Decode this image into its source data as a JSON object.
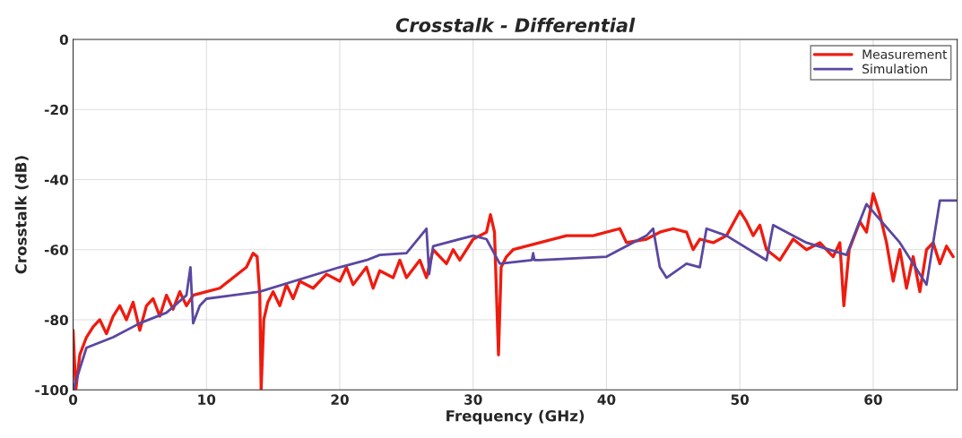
{
  "chart_data": {
    "type": "line",
    "title": "Crosstalk - Differential",
    "xlabel": "Frequency (GHz)",
    "ylabel": "Crosstalk (dB)",
    "xlim": [
      0,
      66.3
    ],
    "xticks": [
      0,
      10,
      20,
      30,
      40,
      50,
      60
    ],
    "ylim": [
      -100,
      0
    ],
    "yticks": [
      -100,
      -80,
      -60,
      -40,
      -20,
      0
    ],
    "grid": true,
    "legend": "top right",
    "line_style": "solid",
    "series": [
      {
        "name": "Measurement",
        "color": "#ee1c10",
        "x": [
          0,
          0.2,
          0.5,
          1,
          1.5,
          2,
          2.5,
          3,
          3.5,
          4,
          4.5,
          5,
          5.5,
          6,
          6.5,
          7,
          7.5,
          8,
          8.5,
          9,
          10,
          11,
          12,
          13,
          13.5,
          13.8,
          14,
          14.1,
          14.3,
          14.6,
          15,
          15.5,
          16,
          16.5,
          17,
          18,
          19,
          20,
          20.5,
          21,
          22,
          22.5,
          23,
          24,
          24.5,
          25,
          26,
          26.5,
          27,
          28,
          28.5,
          29,
          30,
          31,
          31.3,
          31.6,
          31.9,
          32.1,
          32.5,
          33,
          35,
          37,
          39,
          41,
          41.5,
          43,
          44,
          45,
          46,
          46.5,
          47,
          48,
          49,
          50,
          50.5,
          51,
          51.5,
          52,
          53,
          54,
          55,
          56,
          57,
          57.5,
          57.8,
          58.2,
          59,
          59.5,
          60,
          60.5,
          61,
          61.5,
          62,
          62.5,
          63,
          63.5,
          64,
          64.5,
          65,
          65.5,
          66
        ],
        "values": [
          -83,
          -100,
          -90,
          -85,
          -82,
          -80,
          -84,
          -79,
          -76,
          -80,
          -75,
          -83,
          -76,
          -74,
          -79,
          -73,
          -77,
          -72,
          -76,
          -73,
          -72,
          -71,
          -68,
          -65,
          -61,
          -62,
          -73,
          -100,
          -80,
          -75,
          -72,
          -76,
          -70,
          -74,
          -69,
          -71,
          -67,
          -69,
          -65,
          -70,
          -65,
          -71,
          -66,
          -68,
          -63,
          -68,
          -63,
          -68,
          -60,
          -64,
          -60,
          -63,
          -57,
          -55,
          -50,
          -55,
          -90,
          -65,
          -62,
          -60,
          -58,
          -56,
          -56,
          -54,
          -58,
          -57,
          -55,
          -54,
          -55,
          -60,
          -57,
          -58,
          -56,
          -49,
          -52,
          -56,
          -53,
          -60,
          -63,
          -57,
          -60,
          -58,
          -62,
          -58,
          -76,
          -60,
          -52,
          -55,
          -44,
          -50,
          -58,
          -69,
          -60,
          -71,
          -62,
          -72,
          -60,
          -58,
          -64,
          -59,
          -62
        ]
      },
      {
        "name": "Simulation",
        "color": "#5a47a0",
        "x": [
          0,
          1,
          3,
          5,
          7,
          8.5,
          8.8,
          9,
          9.5,
          10,
          14,
          20,
          22,
          23,
          25,
          26.5,
          26.7,
          27,
          30,
          31,
          32,
          34.4,
          34.5,
          34.6,
          35,
          40,
          43,
          43.5,
          44,
          44.5,
          46,
          47,
          47.5,
          49,
          52,
          52.5,
          55,
          58,
          59.5,
          62,
          64,
          65,
          66.3
        ],
        "values": [
          -100,
          -88,
          -85,
          -81,
          -78,
          -73,
          -65,
          -81,
          -76,
          -74,
          -72,
          -65,
          -63,
          -61.5,
          -61,
          -54,
          -67,
          -59,
          -56,
          -57,
          -64,
          -63,
          -61,
          -63,
          -63,
          -62,
          -56,
          -54,
          -65,
          -68,
          -64,
          -65,
          -54,
          -56,
          -63,
          -53,
          -58,
          -61.5,
          -47,
          -58,
          -70,
          -46,
          -46
        ]
      }
    ]
  }
}
